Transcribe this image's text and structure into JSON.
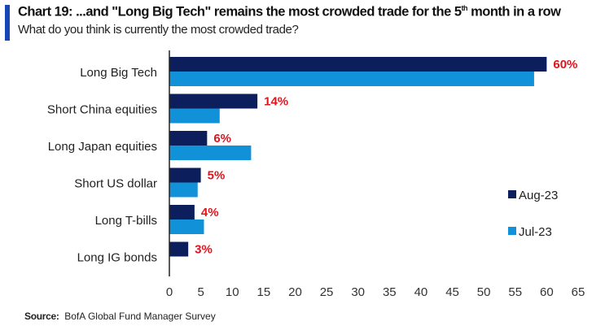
{
  "header": {
    "title_main": "Chart 19: ...and \"Long Big Tech\" remains the most crowded trade for the 5",
    "title_sup": "th",
    "title_tail": " month in a row",
    "subtitle": "What do you think is currently the most crowded trade?"
  },
  "source": {
    "label": "Source:",
    "text": "BofA Global Fund Manager Survey"
  },
  "chart_data": {
    "type": "bar",
    "orientation": "horizontal",
    "title": "Chart 19: ...and \"Long Big Tech\" remains the most crowded trade for the 5th month in a row",
    "subtitle": "What do you think is currently the most crowded trade?",
    "categories": [
      "Long Big Tech",
      "Short China equities",
      "Long Japan equities",
      "Short US dollar",
      "Long T-bills",
      "Long IG bonds"
    ],
    "series": [
      {
        "name": "Aug-23",
        "color": "#0c1f5c",
        "values": [
          60,
          14,
          6,
          5,
          4,
          3
        ]
      },
      {
        "name": "Jul-23",
        "color": "#1192d8",
        "values": [
          58,
          8,
          13,
          4.5,
          5.5,
          0
        ]
      }
    ],
    "data_labels": [
      "60%",
      "14%",
      "6%",
      "5%",
      "4%",
      "3%"
    ],
    "data_label_color": "#e0141e",
    "xlim": [
      0,
      65
    ],
    "xticks": [
      0,
      5,
      10,
      15,
      20,
      25,
      30,
      35,
      40,
      45,
      50,
      55,
      60,
      65
    ],
    "xlabel": "",
    "ylabel": "",
    "grid": false,
    "legend_position": "right"
  }
}
